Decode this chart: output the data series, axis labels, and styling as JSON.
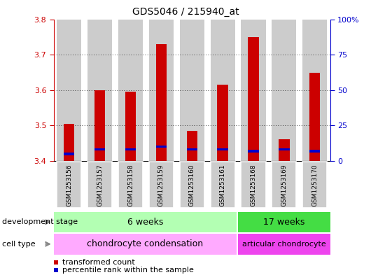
{
  "title": "GDS5046 / 215940_at",
  "samples": [
    "GSM1253156",
    "GSM1253157",
    "GSM1253158",
    "GSM1253159",
    "GSM1253160",
    "GSM1253161",
    "GSM1253168",
    "GSM1253169",
    "GSM1253170"
  ],
  "transformed_count": [
    3.505,
    3.6,
    3.595,
    3.73,
    3.484,
    3.615,
    3.75,
    3.462,
    3.648
  ],
  "base_value": 3.4,
  "percentile_rank": [
    5,
    8,
    8,
    10,
    8,
    8,
    7,
    8,
    7
  ],
  "ylim_left": [
    3.4,
    3.8
  ],
  "ylim_right": [
    0,
    100
  ],
  "yticks_left": [
    3.4,
    3.5,
    3.6,
    3.7,
    3.8
  ],
  "yticks_right": [
    0,
    25,
    50,
    75,
    100
  ],
  "ytick_labels_right": [
    "0",
    "25",
    "50",
    "75",
    "100%"
  ],
  "bar_color": "#cc0000",
  "percentile_color": "#0000cc",
  "grid_color": "#000000",
  "background_color": "#ffffff",
  "bar_bg_color": "#cccccc",
  "development_stage_label": "development stage",
  "cell_type_label": "cell type",
  "group1_label": "6 weeks",
  "group2_label": "17 weeks",
  "celltype1_label": "chondrocyte condensation",
  "celltype2_label": "articular chondrocyte",
  "group1_n": 6,
  "group2_n": 3,
  "group1_color": "#b3ffb3",
  "group2_color": "#44dd44",
  "celltype1_color": "#ffaaff",
  "celltype2_color": "#ee44ee",
  "legend_tc_label": "transformed count",
  "legend_pr_label": "percentile rank within the sample",
  "left_axis_color": "#cc0000",
  "right_axis_color": "#0000cc"
}
